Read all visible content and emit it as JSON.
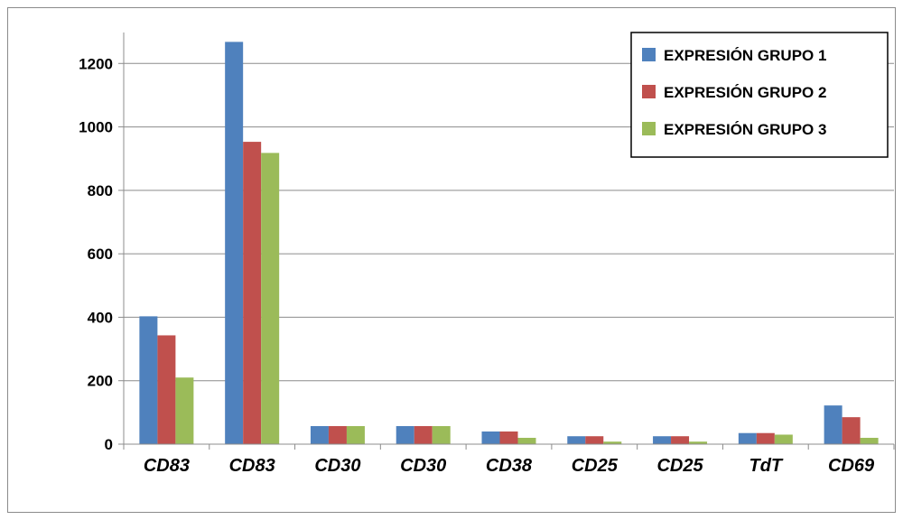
{
  "chart_data": {
    "type": "bar",
    "title": "",
    "xlabel": "",
    "ylabel": "",
    "categories": [
      "CD83",
      "CD83",
      "CD30",
      "CD30",
      "CD38",
      "CD25",
      "CD25",
      "TdT",
      "CD69"
    ],
    "series": [
      {
        "name": "EXPRESIÓN GRUPO 1",
        "color": "#4f81bd",
        "values": [
          403,
          1268,
          57,
          57,
          40,
          25,
          25,
          35,
          122
        ]
      },
      {
        "name": "EXPRESIÓN GRUPO 2",
        "color": "#c0504d",
        "values": [
          343,
          953,
          57,
          57,
          40,
          25,
          25,
          35,
          85
        ]
      },
      {
        "name": "EXPRESIÓN GRUPO 3",
        "color": "#9bbb59",
        "values": [
          210,
          918,
          57,
          57,
          20,
          8,
          8,
          30,
          20
        ]
      }
    ],
    "ylim": [
      0,
      1400
    ],
    "yticks": [
      0,
      200,
      400,
      600,
      800,
      1000,
      1200
    ],
    "grid": true,
    "legend_position": "top-right"
  }
}
